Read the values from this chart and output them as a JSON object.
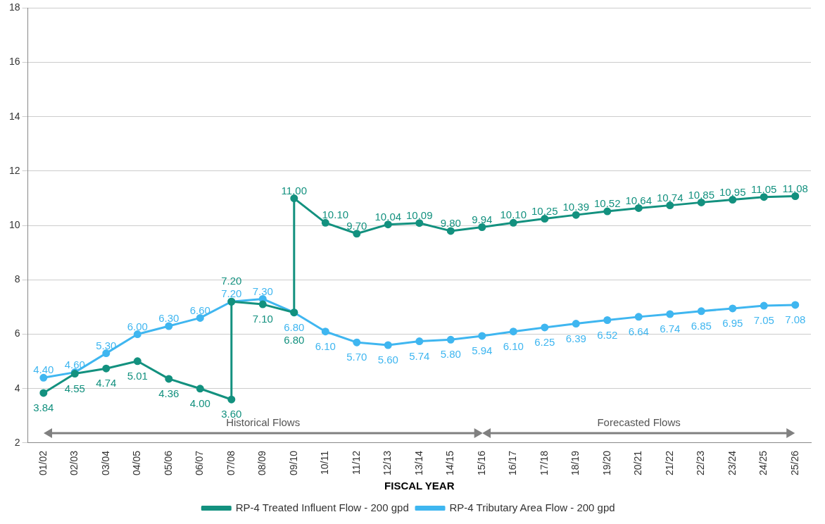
{
  "chart_data": {
    "type": "line",
    "xlabel": "FISCAL YEAR",
    "categories": [
      "01/02",
      "02/03",
      "03/04",
      "04/05",
      "05/06",
      "06/07",
      "07/08",
      "08/09",
      "09/10",
      "10/11",
      "11/12",
      "12/13",
      "13/14",
      "14/15",
      "15/16",
      "16/17",
      "17/18",
      "18/19",
      "19/20",
      "20/21",
      "21/22",
      "22/23",
      "23/24",
      "24/25",
      "25/26"
    ],
    "series": [
      {
        "name": "RP-4 Treated Influent Flow - 200 gpd",
        "color": "#13917f",
        "x": [
          "01/02",
          "02/03",
          "03/04",
          "04/05",
          "05/06",
          "06/07",
          "07/08",
          "07/08",
          "08/09",
          "09/10",
          "09/10",
          "10/11",
          "11/12",
          "12/13",
          "13/14",
          "14/15",
          "15/16",
          "16/17",
          "17/18",
          "18/19",
          "19/20",
          "20/21",
          "21/22",
          "22/23",
          "23/24",
          "24/25",
          "25/26"
        ],
        "values": [
          3.84,
          4.55,
          4.74,
          5.01,
          4.36,
          4.0,
          3.6,
          7.2,
          7.1,
          6.8,
          11.0,
          10.1,
          9.7,
          10.04,
          10.09,
          9.8,
          9.94,
          10.1,
          10.25,
          10.39,
          10.52,
          10.64,
          10.74,
          10.85,
          10.95,
          11.05,
          11.08
        ],
        "value_labels": [
          "3.84",
          "4.55",
          "4.74",
          "5.01",
          "4.36",
          "4.00",
          "3.60",
          "7.20",
          "7.10",
          "6.80",
          "11.00",
          "10.10",
          "9.70",
          "10.04",
          "10.09",
          "9.80",
          "9.94",
          "10.10",
          "10.25",
          "10.39",
          "10.52",
          "10.64",
          "10.74",
          "10.85",
          "10.95",
          "11.05",
          "11.08"
        ]
      },
      {
        "name": "RP-4 Tributary Area Flow - 200 gpd",
        "color": "#3fb6f0",
        "values": [
          4.4,
          4.6,
          5.3,
          6.0,
          6.3,
          6.6,
          7.2,
          7.3,
          6.8,
          6.1,
          5.7,
          5.6,
          5.74,
          5.8,
          5.94,
          6.1,
          6.25,
          6.39,
          6.52,
          6.64,
          6.74,
          6.85,
          6.95,
          7.05,
          7.08
        ],
        "value_labels": [
          "4.40",
          "4.60",
          "5.30",
          "6.00",
          "6.30",
          "6.60",
          "7.20",
          "7.30",
          "6.80",
          "6.10",
          "5.70",
          "5.60",
          "5.74",
          "5.80",
          "5.94",
          "6.10",
          "6.25",
          "6.39",
          "6.52",
          "6.64",
          "6.74",
          "6.85",
          "6.95",
          "7.05",
          "7.08"
        ]
      }
    ],
    "ylim": [
      2,
      18
    ],
    "yticks": [
      2,
      4,
      6,
      8,
      10,
      12,
      14,
      16,
      18
    ],
    "grid": "y",
    "legend": "bottom",
    "marker": "circle",
    "annotations": [
      "Historical Flows",
      "Forecasted Flows"
    ]
  }
}
